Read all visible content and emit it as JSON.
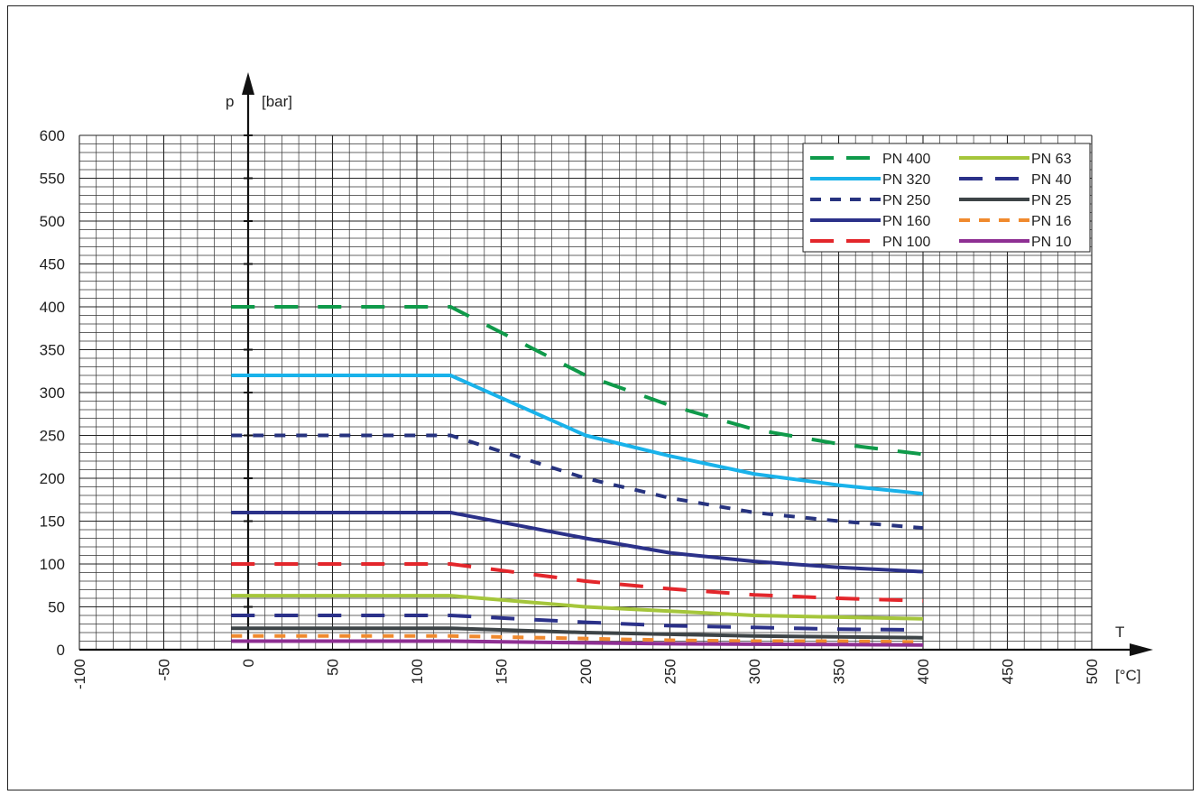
{
  "chart_data": {
    "type": "line",
    "ylabel_symbol": "p",
    "ylabel_unit": "[bar]",
    "xlabel_symbol": "T",
    "xlabel_unit": "[°C]",
    "xlim": [
      -100,
      500
    ],
    "ylim": [
      0,
      600
    ],
    "x_ticks": [
      -100,
      -50,
      0,
      50,
      100,
      150,
      200,
      250,
      300,
      350,
      400,
      450,
      500
    ],
    "x_tick_labels": [
      "-100",
      "-50",
      "0",
      "50",
      "100",
      "150",
      "200",
      "250",
      "300",
      "350",
      "400",
      "450",
      "500"
    ],
    "y_ticks": [
      0,
      50,
      100,
      150,
      200,
      250,
      300,
      350,
      400,
      450,
      500,
      550,
      600
    ],
    "y_tick_labels": [
      "0",
      "50",
      "100",
      "150",
      "200",
      "250",
      "300",
      "350",
      "400",
      "450",
      "500",
      "550",
      "600"
    ],
    "grid": true,
    "legend_position": "top-right",
    "legend_columns": 2,
    "x": [
      -10,
      120,
      200,
      250,
      300,
      350,
      400
    ],
    "series": [
      {
        "name": "PN 400",
        "color": "#0f9a4a",
        "style": "dashed",
        "values": [
          400,
          400,
          320,
          285,
          257,
          240,
          228
        ]
      },
      {
        "name": "PN 320",
        "color": "#19b2ea",
        "style": "solid",
        "values": [
          320,
          320,
          250,
          226,
          205,
          192,
          182
        ]
      },
      {
        "name": "PN 250",
        "color": "#27337f",
        "style": "dotted",
        "values": [
          250,
          250,
          200,
          177,
          160,
          150,
          142
        ]
      },
      {
        "name": "PN 160",
        "color": "#2b3189",
        "style": "solid",
        "values": [
          160,
          160,
          130,
          113,
          103,
          96,
          91
        ]
      },
      {
        "name": "PN 100",
        "color": "#e3262b",
        "style": "dashed",
        "values": [
          100,
          100,
          80,
          71,
          64,
          60,
          57
        ]
      },
      {
        "name": "PN 63",
        "color": "#a5c63b",
        "style": "solid",
        "values": [
          63,
          63,
          50,
          45,
          40,
          38,
          36
        ]
      },
      {
        "name": "PN 40",
        "color": "#2b3189",
        "style": "dashed",
        "values": [
          40,
          40,
          32,
          28,
          26,
          24,
          23
        ]
      },
      {
        "name": "PN 25",
        "color": "#3d4447",
        "style": "solid",
        "values": [
          25,
          25,
          20,
          18,
          16,
          15,
          14
        ]
      },
      {
        "name": "PN 16",
        "color": "#f08a2e",
        "style": "dotted",
        "values": [
          16,
          16,
          13,
          11,
          10,
          10,
          9
        ]
      },
      {
        "name": "PN 10",
        "color": "#8e2f93",
        "style": "solid",
        "values": [
          10,
          10,
          8,
          7,
          6.5,
          6,
          5.5
        ]
      }
    ]
  }
}
